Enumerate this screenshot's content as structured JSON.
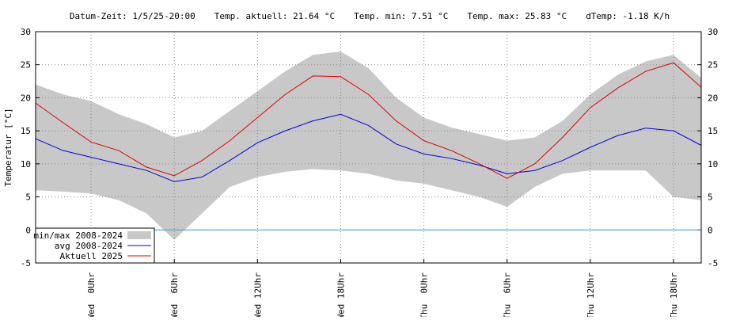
{
  "chart_data": {
    "type": "line",
    "header": [
      "Datum-Zeit: 1/5/25-20:00",
      "Temp. aktuell: 21.64 °C",
      "Temp. min: 7.51 °C",
      "Temp. max: 25.83 °C",
      "dTemp: -1.18 K/h"
    ],
    "y_label": "Temperatur [°C]",
    "x": [
      -4,
      -2,
      0,
      2,
      4,
      6,
      8,
      10,
      12,
      14,
      16,
      18,
      20,
      22,
      24,
      26,
      28,
      30,
      32,
      34,
      36,
      38,
      40,
      42,
      44
    ],
    "xlim": [
      -4,
      44
    ],
    "xticks": [
      {
        "value": 0,
        "label": "Wed  0Uhr"
      },
      {
        "value": 6,
        "label": "Wed  6Uhr"
      },
      {
        "value": 12,
        "label": "Wed 12Uhr"
      },
      {
        "value": 18,
        "label": "Wed 18Uhr"
      },
      {
        "value": 24,
        "label": "Thu  0Uhr"
      },
      {
        "value": 30,
        "label": "Thu  6Uhr"
      },
      {
        "value": 36,
        "label": "Thu 12Uhr"
      },
      {
        "value": 42,
        "label": "Thu 18Uhr"
      }
    ],
    "ylim": [
      -5,
      30
    ],
    "yticks": [
      -5,
      0,
      5,
      10,
      15,
      20,
      25,
      30
    ],
    "grid": true,
    "zero_line_color": "#3fa0d8",
    "legend": "lower left",
    "series": [
      {
        "name": "min/max 2008-2024",
        "color": "#c8c8c8",
        "kind": "band",
        "max": [
          22,
          20.5,
          19.5,
          17.5,
          16,
          14,
          15,
          18,
          21,
          24,
          26.5,
          27,
          24.5,
          20,
          17,
          15.5,
          14.5,
          13.5,
          14,
          16.5,
          20.5,
          23.5,
          25.5,
          26.5,
          23
        ],
        "min": [
          6,
          5.8,
          5.5,
          4.5,
          2.5,
          -1.5,
          2.5,
          6.5,
          8,
          8.8,
          9.2,
          9,
          8.5,
          7.5,
          7,
          6,
          5,
          3.5,
          6.5,
          8.5,
          9,
          9,
          9,
          5,
          4.5
        ]
      },
      {
        "name": "avg 2008-2024",
        "color": "#0000e0",
        "values": [
          13.8,
          12,
          11,
          10,
          9,
          7.3,
          8,
          10.5,
          13.2,
          15,
          16.5,
          17.5,
          15.8,
          13,
          11.5,
          10.8,
          9.8,
          8.5,
          9,
          10.5,
          12.5,
          14.3,
          15.4,
          15,
          12.8
        ]
      },
      {
        "name": "Aktuell 2025",
        "color": "#e00000",
        "values": [
          19.2,
          16.2,
          13.3,
          12,
          9.5,
          8.2,
          10.5,
          13.5,
          17,
          20.5,
          23.3,
          23.2,
          20.5,
          16.5,
          13.5,
          12,
          10,
          7.8,
          10,
          14,
          18.5,
          21.5,
          24,
          25.3,
          21.6
        ]
      }
    ]
  }
}
